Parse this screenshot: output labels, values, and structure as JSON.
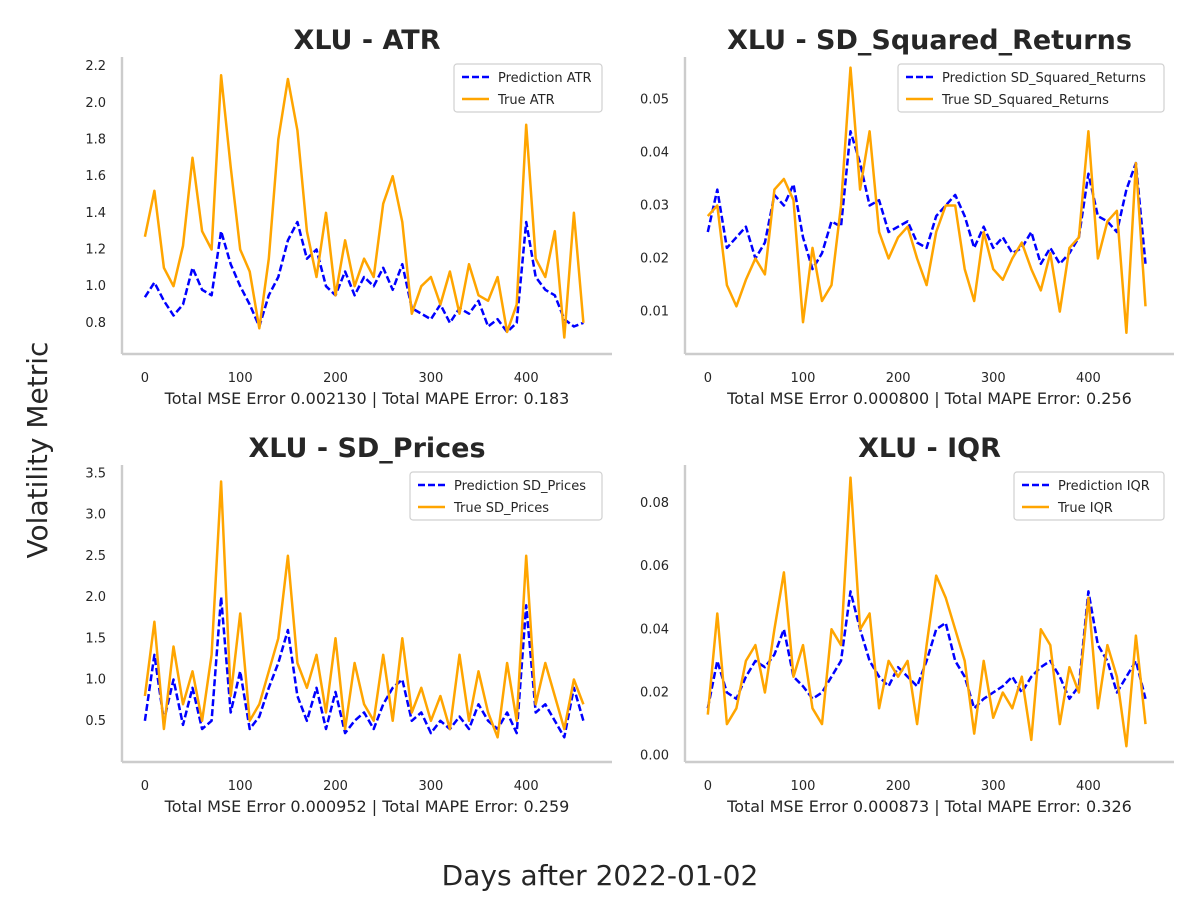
{
  "figure": {
    "xlabel": "Days after 2022-01-02",
    "ylabel": "Volatility Metric",
    "colors": {
      "prediction": "#0000ff",
      "true": "#ffa500"
    }
  },
  "chart_data": [
    {
      "type": "line",
      "title": "XLU - ATR",
      "error_text": "Total MSE Error 0.002130 | Total MAPE Error: 0.183",
      "xlim": [
        -24,
        490
      ],
      "ylim": [
        0.63,
        2.25
      ],
      "xticks": [
        0,
        100,
        200,
        300,
        400
      ],
      "yticks": [
        0.8,
        1.0,
        1.2,
        1.4,
        1.6,
        1.8,
        2.0,
        2.2
      ],
      "ytick_labels": [
        "0.8",
        "1.0",
        "1.2",
        "1.4",
        "1.6",
        "1.8",
        "2.0",
        "2.2"
      ],
      "x": [
        0,
        10,
        20,
        30,
        40,
        50,
        60,
        70,
        80,
        90,
        100,
        110,
        120,
        130,
        140,
        150,
        160,
        170,
        180,
        190,
        200,
        210,
        220,
        230,
        240,
        250,
        260,
        270,
        280,
        290,
        300,
        310,
        320,
        330,
        340,
        350,
        360,
        370,
        380,
        390,
        400,
        410,
        420,
        430,
        440,
        450,
        460
      ],
      "series": [
        {
          "name": "Prediction ATR",
          "style": "dashed",
          "values": [
            0.94,
            1.02,
            0.92,
            0.84,
            0.9,
            1.1,
            0.98,
            0.95,
            1.3,
            1.12,
            1.0,
            0.9,
            0.78,
            0.95,
            1.05,
            1.25,
            1.35,
            1.15,
            1.2,
            1.0,
            0.95,
            1.08,
            0.95,
            1.05,
            1.0,
            1.1,
            0.98,
            1.12,
            0.88,
            0.85,
            0.82,
            0.9,
            0.8,
            0.88,
            0.85,
            0.92,
            0.78,
            0.82,
            0.75,
            0.8,
            1.35,
            1.05,
            0.98,
            0.95,
            0.82,
            0.78,
            0.8
          ]
        },
        {
          "name": "True ATR",
          "style": "solid",
          "values": [
            1.27,
            1.52,
            1.1,
            1.0,
            1.22,
            1.7,
            1.3,
            1.2,
            2.15,
            1.65,
            1.2,
            1.08,
            0.77,
            1.15,
            1.8,
            2.13,
            1.85,
            1.3,
            1.05,
            1.4,
            0.95,
            1.25,
            1.0,
            1.15,
            1.05,
            1.45,
            1.6,
            1.35,
            0.85,
            1.0,
            1.05,
            0.9,
            1.08,
            0.85,
            1.12,
            0.95,
            0.92,
            1.05,
            0.75,
            0.9,
            1.88,
            1.15,
            1.05,
            1.3,
            0.72,
            1.4,
            0.8
          ]
        }
      ]
    },
    {
      "type": "line",
      "title": "XLU - SD_Squared_Returns",
      "error_text": "Total MSE Error 0.000800 | Total MAPE Error: 0.256",
      "xlim": [
        -24,
        490
      ],
      "ylim": [
        0.002,
        0.058
      ],
      "xticks": [
        0,
        100,
        200,
        300,
        400
      ],
      "yticks": [
        0.01,
        0.02,
        0.03,
        0.04,
        0.05
      ],
      "ytick_labels": [
        "0.01",
        "0.02",
        "0.03",
        "0.04",
        "0.05"
      ],
      "x": [
        0,
        10,
        20,
        30,
        40,
        50,
        60,
        70,
        80,
        90,
        100,
        110,
        120,
        130,
        140,
        150,
        160,
        170,
        180,
        190,
        200,
        210,
        220,
        230,
        240,
        250,
        260,
        270,
        280,
        290,
        300,
        310,
        320,
        330,
        340,
        350,
        360,
        370,
        380,
        390,
        400,
        410,
        420,
        430,
        440,
        450,
        460
      ],
      "series": [
        {
          "name": "Prediction SD_Squared_Returns",
          "style": "dashed",
          "values": [
            0.025,
            0.033,
            0.022,
            0.024,
            0.026,
            0.02,
            0.023,
            0.032,
            0.03,
            0.034,
            0.024,
            0.018,
            0.021,
            0.027,
            0.026,
            0.044,
            0.038,
            0.03,
            0.031,
            0.025,
            0.026,
            0.027,
            0.023,
            0.022,
            0.028,
            0.03,
            0.032,
            0.028,
            0.022,
            0.026,
            0.022,
            0.024,
            0.021,
            0.022,
            0.025,
            0.019,
            0.022,
            0.019,
            0.021,
            0.024,
            0.036,
            0.028,
            0.027,
            0.025,
            0.033,
            0.038,
            0.019
          ]
        },
        {
          "name": "True SD_Squared_Returns",
          "style": "solid",
          "values": [
            0.028,
            0.03,
            0.015,
            0.011,
            0.016,
            0.02,
            0.017,
            0.033,
            0.035,
            0.031,
            0.008,
            0.022,
            0.012,
            0.015,
            0.03,
            0.056,
            0.033,
            0.044,
            0.025,
            0.02,
            0.024,
            0.026,
            0.02,
            0.015,
            0.025,
            0.03,
            0.03,
            0.018,
            0.012,
            0.025,
            0.018,
            0.016,
            0.02,
            0.023,
            0.018,
            0.014,
            0.021,
            0.01,
            0.022,
            0.024,
            0.044,
            0.02,
            0.027,
            0.029,
            0.006,
            0.038,
            0.011
          ]
        }
      ]
    },
    {
      "type": "line",
      "title": "XLU - SD_Prices",
      "error_text": "Total MSE Error 0.000952 | Total MAPE Error: 0.259",
      "xlim": [
        -24,
        490
      ],
      "ylim": [
        0.0,
        3.6
      ],
      "xticks": [
        0,
        100,
        200,
        300,
        400
      ],
      "yticks": [
        0.5,
        1.0,
        1.5,
        2.0,
        2.5,
        3.0,
        3.5
      ],
      "ytick_labels": [
        "0.5",
        "1.0",
        "1.5",
        "2.0",
        "2.5",
        "3.0",
        "3.5"
      ],
      "x": [
        0,
        10,
        20,
        30,
        40,
        50,
        60,
        70,
        80,
        90,
        100,
        110,
        120,
        130,
        140,
        150,
        160,
        170,
        180,
        190,
        200,
        210,
        220,
        230,
        240,
        250,
        260,
        270,
        280,
        290,
        300,
        310,
        320,
        330,
        340,
        350,
        360,
        370,
        380,
        390,
        400,
        410,
        420,
        430,
        440,
        450,
        460
      ],
      "series": [
        {
          "name": "Prediction SD_Prices",
          "style": "dashed",
          "values": [
            0.5,
            1.3,
            0.5,
            1.0,
            0.45,
            0.9,
            0.4,
            0.5,
            2.0,
            0.6,
            1.1,
            0.4,
            0.55,
            0.9,
            1.2,
            1.6,
            0.8,
            0.5,
            0.9,
            0.4,
            0.85,
            0.35,
            0.5,
            0.6,
            0.4,
            0.7,
            0.9,
            1.0,
            0.5,
            0.6,
            0.35,
            0.5,
            0.4,
            0.55,
            0.4,
            0.7,
            0.5,
            0.4,
            0.6,
            0.35,
            1.9,
            0.6,
            0.7,
            0.5,
            0.3,
            0.9,
            0.5
          ]
        },
        {
          "name": "True SD_Prices",
          "style": "solid",
          "values": [
            0.8,
            1.7,
            0.4,
            1.4,
            0.7,
            1.1,
            0.5,
            1.3,
            3.4,
            0.8,
            1.8,
            0.5,
            0.7,
            1.1,
            1.5,
            2.5,
            1.2,
            0.9,
            1.3,
            0.6,
            1.5,
            0.4,
            1.2,
            0.7,
            0.5,
            1.3,
            0.5,
            1.5,
            0.6,
            0.9,
            0.5,
            0.8,
            0.4,
            1.3,
            0.5,
            1.1,
            0.6,
            0.3,
            1.2,
            0.5,
            2.5,
            0.7,
            1.2,
            0.8,
            0.4,
            1.0,
            0.7
          ]
        }
      ]
    },
    {
      "type": "line",
      "title": "XLU - IQR",
      "error_text": "Total MSE Error 0.000873 | Total MAPE Error: 0.326",
      "xlim": [
        -24,
        490
      ],
      "ylim": [
        -0.002,
        0.092
      ],
      "xticks": [
        0,
        100,
        200,
        300,
        400
      ],
      "yticks": [
        0.0,
        0.02,
        0.04,
        0.06,
        0.08
      ],
      "ytick_labels": [
        "0.00",
        "0.02",
        "0.04",
        "0.06",
        "0.08"
      ],
      "x": [
        0,
        10,
        20,
        30,
        40,
        50,
        60,
        70,
        80,
        90,
        100,
        110,
        120,
        130,
        140,
        150,
        160,
        170,
        180,
        190,
        200,
        210,
        220,
        230,
        240,
        250,
        260,
        270,
        280,
        290,
        300,
        310,
        320,
        330,
        340,
        350,
        360,
        370,
        380,
        390,
        400,
        410,
        420,
        430,
        440,
        450,
        460
      ],
      "series": [
        {
          "name": "Prediction IQR",
          "style": "dashed",
          "values": [
            0.015,
            0.03,
            0.02,
            0.018,
            0.025,
            0.03,
            0.028,
            0.032,
            0.04,
            0.025,
            0.022,
            0.018,
            0.02,
            0.025,
            0.03,
            0.052,
            0.04,
            0.03,
            0.025,
            0.022,
            0.028,
            0.025,
            0.022,
            0.03,
            0.04,
            0.042,
            0.03,
            0.025,
            0.015,
            0.018,
            0.02,
            0.022,
            0.025,
            0.02,
            0.025,
            0.028,
            0.03,
            0.025,
            0.018,
            0.022,
            0.052,
            0.035,
            0.03,
            0.02,
            0.025,
            0.03,
            0.018
          ]
        },
        {
          "name": "True IQR",
          "style": "solid",
          "values": [
            0.013,
            0.045,
            0.01,
            0.015,
            0.03,
            0.035,
            0.02,
            0.04,
            0.058,
            0.025,
            0.035,
            0.015,
            0.01,
            0.04,
            0.035,
            0.088,
            0.04,
            0.045,
            0.015,
            0.03,
            0.025,
            0.03,
            0.01,
            0.035,
            0.057,
            0.05,
            0.04,
            0.03,
            0.007,
            0.03,
            0.012,
            0.02,
            0.015,
            0.025,
            0.005,
            0.04,
            0.035,
            0.01,
            0.028,
            0.02,
            0.05,
            0.015,
            0.035,
            0.025,
            0.003,
            0.038,
            0.01
          ]
        }
      ]
    }
  ]
}
